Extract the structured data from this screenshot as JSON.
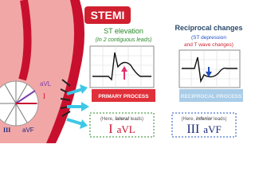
{
  "header": {
    "title": "STEMI"
  },
  "axis_labels": [
    "aVL",
    "I",
    "III",
    "aVF"
  ],
  "panels": [
    {
      "title": "ST elevation",
      "subtitle": [
        "(In 2 contiguous leads)"
      ],
      "process": "PRIMARY PROCESS",
      "note": [
        "(Here, ",
        "lateral",
        " leads)"
      ],
      "leads": [
        "I",
        "aVL"
      ]
    },
    {
      "title": "Reciprocal changes",
      "subtitle": [
        "(ST depression",
        "and T wave changes)"
      ],
      "process": "RECIPROCAL PROCESS",
      "note": [
        "(Here, ",
        "inferior",
        " leads)"
      ],
      "leads": [
        "III",
        "aVF"
      ]
    }
  ]
}
